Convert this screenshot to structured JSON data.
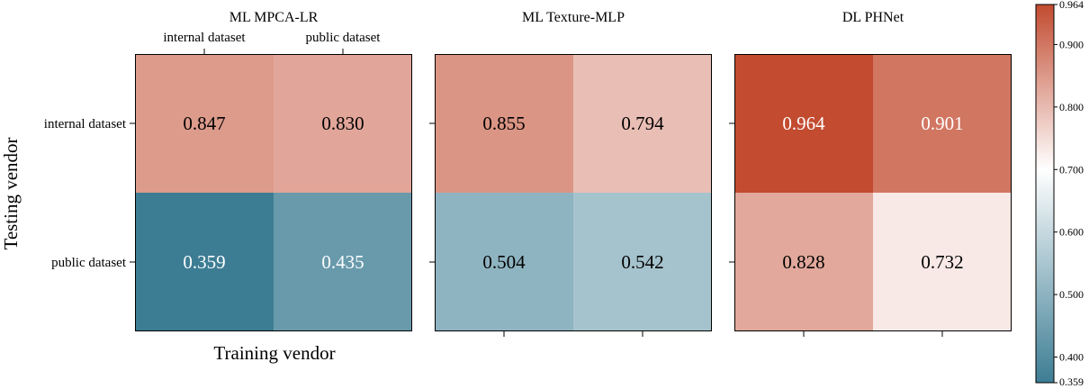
{
  "chart_data": {
    "type": "heatmap",
    "xlabel": "Training vendor",
    "ylabel": "Testing vendor",
    "categories": [
      "internal dataset",
      "public dataset"
    ],
    "rows": [
      "internal dataset",
      "public dataset"
    ],
    "panels": [
      {
        "title": "ML MPCA-LR",
        "values": [
          [
            0.847,
            0.83
          ],
          [
            0.359,
            0.435
          ]
        ]
      },
      {
        "title": "ML Texture-MLP",
        "values": [
          [
            0.855,
            0.794
          ],
          [
            0.504,
            0.542
          ]
        ]
      },
      {
        "title": "DL PHNet",
        "values": [
          [
            0.964,
            0.901
          ],
          [
            0.828,
            0.732
          ]
        ]
      }
    ],
    "colorbar": {
      "min": 0.359,
      "max": 0.964,
      "mid": 0.7,
      "ticks": [
        "0.964",
        "0.900",
        "0.800",
        "0.700",
        "0.600",
        "0.500",
        "0.400",
        "0.359"
      ],
      "colors": {
        "low": "#3d7d94",
        "mid": "#ffffff",
        "high": "#c24b30"
      }
    }
  }
}
